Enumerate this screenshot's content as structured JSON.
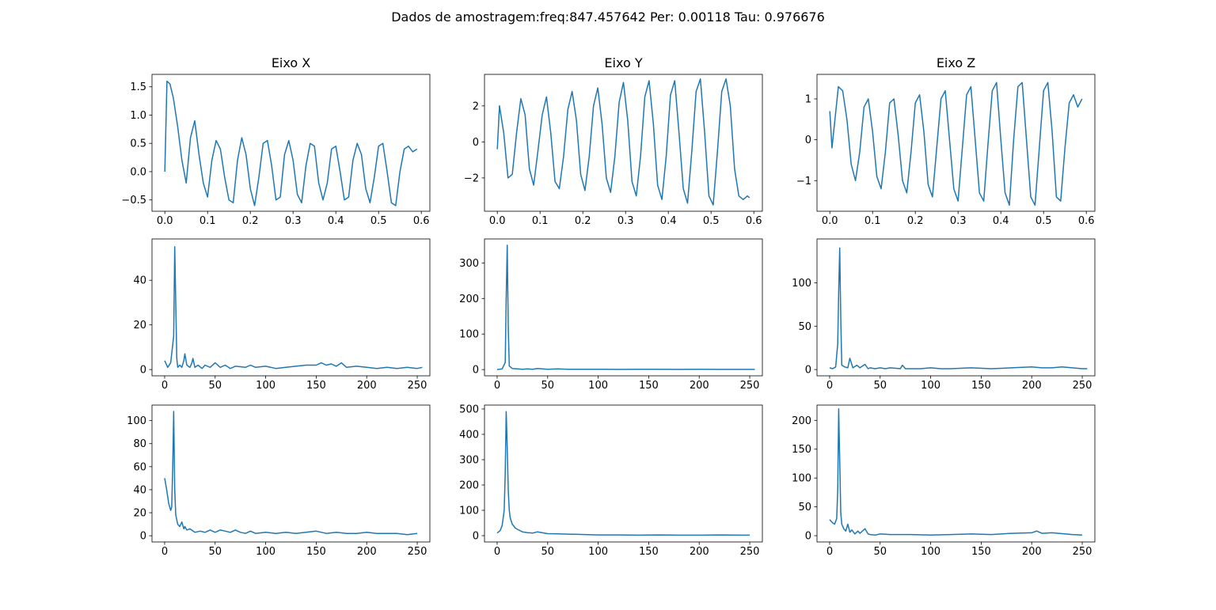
{
  "figure": {
    "suptitle": "Dados de amostragem:freq:847.457642 Per: 0.00118 Tau: 0.976676"
  },
  "chart_data": [
    {
      "type": "line",
      "row": 0,
      "col": 0,
      "title": "Eixo X",
      "xlabel": "",
      "ylabel": "",
      "xlim": [
        -0.03,
        0.62
      ],
      "ylim": [
        -0.7,
        1.72
      ],
      "xticks": [
        0.0,
        0.1,
        0.2,
        0.3,
        0.4,
        0.5,
        0.6
      ],
      "xtick_labels": [
        "0.0",
        "0.1",
        "0.2",
        "0.3",
        "0.4",
        "0.5",
        "0.6"
      ],
      "yticks": [
        -0.5,
        0.0,
        0.5,
        1.0,
        1.5
      ],
      "ytick_labels": [
        "−0.5",
        "0.0",
        "0.5",
        "1.0",
        "1.5"
      ],
      "x": [
        0.0,
        0.005,
        0.012,
        0.02,
        0.03,
        0.04,
        0.05,
        0.06,
        0.07,
        0.08,
        0.09,
        0.1,
        0.11,
        0.12,
        0.13,
        0.14,
        0.15,
        0.16,
        0.17,
        0.18,
        0.19,
        0.2,
        0.21,
        0.22,
        0.23,
        0.24,
        0.25,
        0.26,
        0.27,
        0.28,
        0.29,
        0.3,
        0.31,
        0.32,
        0.33,
        0.34,
        0.35,
        0.36,
        0.37,
        0.38,
        0.39,
        0.4,
        0.41,
        0.42,
        0.43,
        0.44,
        0.45,
        0.46,
        0.47,
        0.48,
        0.49,
        0.5,
        0.51,
        0.52,
        0.53,
        0.54,
        0.55,
        0.56,
        0.57,
        0.58,
        0.59
      ],
      "values": [
        0.0,
        1.6,
        1.55,
        1.3,
        0.8,
        0.2,
        -0.2,
        0.6,
        0.9,
        0.3,
        -0.2,
        -0.45,
        0.2,
        0.55,
        0.4,
        -0.1,
        -0.5,
        -0.55,
        0.2,
        0.6,
        0.3,
        -0.3,
        -0.6,
        -0.1,
        0.5,
        0.55,
        0.1,
        -0.5,
        -0.45,
        0.3,
        0.55,
        0.2,
        -0.4,
        -0.55,
        0.1,
        0.5,
        0.45,
        -0.2,
        -0.5,
        -0.2,
        0.4,
        0.45,
        0.0,
        -0.5,
        -0.45,
        0.2,
        0.5,
        0.3,
        -0.3,
        -0.55,
        -0.1,
        0.45,
        0.5,
        0.0,
        -0.55,
        -0.6,
        0.0,
        0.4,
        0.45,
        0.35,
        0.4
      ],
      "color": "#1f77b4"
    },
    {
      "type": "line",
      "row": 0,
      "col": 1,
      "title": "Eixo Y",
      "xlabel": "",
      "ylabel": "",
      "xlim": [
        -0.03,
        0.62
      ],
      "ylim": [
        -3.85,
        3.75
      ],
      "xticks": [
        0.0,
        0.1,
        0.2,
        0.3,
        0.4,
        0.5,
        0.6
      ],
      "xtick_labels": [
        "0.0",
        "0.1",
        "0.2",
        "0.3",
        "0.4",
        "0.5",
        "0.6"
      ],
      "yticks": [
        -2,
        0,
        2
      ],
      "ytick_labels": [
        "−2",
        "0",
        "2"
      ],
      "x": [
        0.0,
        0.005,
        0.015,
        0.025,
        0.035,
        0.045,
        0.055,
        0.065,
        0.075,
        0.085,
        0.095,
        0.105,
        0.115,
        0.125,
        0.135,
        0.145,
        0.155,
        0.165,
        0.175,
        0.185,
        0.195,
        0.205,
        0.215,
        0.225,
        0.235,
        0.245,
        0.255,
        0.265,
        0.275,
        0.285,
        0.295,
        0.305,
        0.315,
        0.325,
        0.335,
        0.345,
        0.355,
        0.365,
        0.375,
        0.385,
        0.395,
        0.405,
        0.415,
        0.425,
        0.435,
        0.445,
        0.455,
        0.465,
        0.475,
        0.485,
        0.495,
        0.505,
        0.515,
        0.525,
        0.535,
        0.545,
        0.555,
        0.565,
        0.575,
        0.585,
        0.59
      ],
      "values": [
        -0.4,
        2.0,
        0.5,
        -2.0,
        -1.8,
        0.5,
        2.4,
        1.5,
        -1.5,
        -2.4,
        -0.5,
        1.5,
        2.5,
        0.5,
        -2.2,
        -2.6,
        -0.8,
        1.8,
        2.8,
        1.2,
        -1.8,
        -2.7,
        -0.8,
        2.0,
        3.0,
        1.0,
        -2.0,
        -2.8,
        -0.8,
        2.2,
        3.3,
        1.2,
        -2.2,
        -3.0,
        -0.8,
        2.5,
        3.4,
        1.0,
        -2.4,
        -3.2,
        -0.8,
        2.6,
        3.4,
        0.5,
        -2.6,
        -3.4,
        -0.5,
        2.8,
        3.5,
        0.5,
        -3.0,
        -3.5,
        -0.5,
        2.8,
        3.5,
        2.0,
        -1.5,
        -3.0,
        -3.2,
        -3.0,
        -3.1
      ],
      "color": "#1f77b4"
    },
    {
      "type": "line",
      "row": 0,
      "col": 2,
      "title": "Eixo Z",
      "xlabel": "",
      "ylabel": "",
      "xlim": [
        -0.03,
        0.62
      ],
      "ylim": [
        -1.75,
        1.6
      ],
      "xticks": [
        0.0,
        0.1,
        0.2,
        0.3,
        0.4,
        0.5,
        0.6
      ],
      "xtick_labels": [
        "0.0",
        "0.1",
        "0.2",
        "0.3",
        "0.4",
        "0.5",
        "0.6"
      ],
      "yticks": [
        -1,
        0,
        1
      ],
      "ytick_labels": [
        "−1",
        "0",
        "1"
      ],
      "x": [
        0.0,
        0.005,
        0.012,
        0.02,
        0.03,
        0.04,
        0.05,
        0.06,
        0.07,
        0.08,
        0.09,
        0.1,
        0.11,
        0.12,
        0.13,
        0.14,
        0.15,
        0.16,
        0.17,
        0.18,
        0.19,
        0.2,
        0.21,
        0.22,
        0.23,
        0.24,
        0.25,
        0.26,
        0.27,
        0.28,
        0.29,
        0.3,
        0.31,
        0.32,
        0.33,
        0.34,
        0.35,
        0.36,
        0.37,
        0.38,
        0.39,
        0.4,
        0.41,
        0.42,
        0.43,
        0.44,
        0.45,
        0.46,
        0.47,
        0.48,
        0.49,
        0.5,
        0.51,
        0.52,
        0.53,
        0.54,
        0.55,
        0.56,
        0.57,
        0.58,
        0.59
      ],
      "values": [
        0.7,
        -0.2,
        0.5,
        1.3,
        1.2,
        0.5,
        -0.6,
        -1.0,
        -0.3,
        0.8,
        1.0,
        0.2,
        -0.9,
        -1.2,
        -0.3,
        0.9,
        1.0,
        0.1,
        -1.0,
        -1.3,
        -0.3,
        0.9,
        1.1,
        0.2,
        -1.1,
        -1.4,
        -0.2,
        1.0,
        1.2,
        0.0,
        -1.2,
        -1.5,
        -0.2,
        1.1,
        1.3,
        0.0,
        -1.3,
        -1.5,
        -0.1,
        1.2,
        1.4,
        0.0,
        -1.3,
        -1.6,
        0.0,
        1.3,
        1.4,
        0.0,
        -1.4,
        -1.6,
        -0.2,
        1.2,
        1.4,
        0.2,
        -1.4,
        -1.5,
        -0.2,
        0.9,
        1.1,
        0.8,
        1.0
      ],
      "color": "#1f77b4"
    },
    {
      "type": "line",
      "row": 1,
      "col": 0,
      "title": "",
      "xlabel": "",
      "ylabel": "",
      "xlim": [
        -12.5,
        262.5
      ],
      "ylim": [
        -2.8,
        58.5
      ],
      "xticks": [
        0,
        50,
        100,
        150,
        200,
        250
      ],
      "xtick_labels": [
        "0",
        "50",
        "100",
        "150",
        "200",
        "250"
      ],
      "yticks": [
        0,
        20,
        40
      ],
      "ytick_labels": [
        "0",
        "20",
        "40"
      ],
      "x": [
        0,
        3,
        6,
        9,
        10,
        11,
        12,
        13,
        15,
        17,
        19,
        20,
        22,
        25,
        27,
        28,
        30,
        33,
        37,
        40,
        45,
        50,
        55,
        60,
        65,
        70,
        80,
        85,
        90,
        100,
        110,
        120,
        130,
        140,
        150,
        155,
        160,
        165,
        170,
        175,
        180,
        190,
        200,
        210,
        220,
        230,
        240,
        250,
        255
      ],
      "values": [
        4,
        1,
        3,
        15,
        55,
        30,
        5,
        1,
        2,
        1,
        4,
        7,
        2,
        1,
        3,
        5,
        1,
        2,
        0.5,
        2,
        1,
        3,
        1,
        2,
        0.5,
        1.5,
        1,
        2,
        1,
        1.5,
        0.5,
        1,
        1.5,
        2,
        2,
        3,
        2,
        2.5,
        1.5,
        3,
        1,
        1.5,
        1,
        0.5,
        1,
        0.5,
        1,
        0.5,
        1
      ],
      "color": "#1f77b4"
    },
    {
      "type": "line",
      "row": 1,
      "col": 1,
      "title": "",
      "xlabel": "",
      "ylabel": "",
      "xlim": [
        -12.5,
        262.5
      ],
      "ylim": [
        -17.5,
        367.5
      ],
      "xticks": [
        0,
        50,
        100,
        150,
        200,
        250
      ],
      "xtick_labels": [
        "0",
        "50",
        "100",
        "150",
        "200",
        "250"
      ],
      "yticks": [
        0,
        100,
        200,
        300
      ],
      "ytick_labels": [
        "0",
        "100",
        "200",
        "300"
      ],
      "x": [
        0,
        5,
        8,
        9,
        10,
        11,
        12,
        15,
        20,
        25,
        30,
        35,
        40,
        50,
        60,
        70,
        80,
        100,
        120,
        140,
        160,
        180,
        200,
        220,
        240,
        255
      ],
      "values": [
        0,
        2,
        20,
        200,
        350,
        120,
        10,
        3,
        2,
        1,
        2,
        1,
        3,
        1,
        2,
        1,
        1,
        1,
        0.5,
        1,
        1,
        0.5,
        1,
        0.5,
        0.5,
        0.5
      ],
      "color": "#1f77b4"
    },
    {
      "type": "line",
      "row": 1,
      "col": 2,
      "title": "",
      "xlabel": "",
      "ylabel": "",
      "xlim": [
        -12.5,
        262.5
      ],
      "ylim": [
        -7.2,
        150.5
      ],
      "xticks": [
        0,
        50,
        100,
        150,
        200,
        250
      ],
      "xtick_labels": [
        "0",
        "50",
        "100",
        "150",
        "200",
        "250"
      ],
      "yticks": [
        0,
        50,
        100
      ],
      "ytick_labels": [
        "0",
        "50",
        "100"
      ],
      "x": [
        0,
        3,
        6,
        8,
        9,
        10,
        11,
        12,
        15,
        18,
        20,
        23,
        27,
        30,
        35,
        38,
        40,
        45,
        50,
        55,
        60,
        70,
        72,
        75,
        80,
        90,
        100,
        110,
        120,
        140,
        160,
        180,
        200,
        210,
        220,
        230,
        240,
        250,
        255
      ],
      "values": [
        2,
        1,
        3,
        30,
        90,
        140,
        60,
        5,
        3,
        2,
        13,
        2,
        5,
        2,
        6,
        1,
        2,
        1,
        2,
        1,
        2,
        1,
        5,
        1,
        1,
        1,
        2,
        1,
        1,
        2,
        1,
        2,
        3,
        2,
        2,
        3,
        2,
        1,
        1
      ],
      "color": "#1f77b4"
    },
    {
      "type": "line",
      "row": 2,
      "col": 0,
      "title": "",
      "xlabel": "",
      "ylabel": "",
      "xlim": [
        -12.5,
        262.5
      ],
      "ylim": [
        -5.4,
        113.5
      ],
      "xticks": [
        0,
        50,
        100,
        150,
        200,
        250
      ],
      "xtick_labels": [
        "0",
        "50",
        "100",
        "150",
        "200",
        "250"
      ],
      "yticks": [
        0,
        20,
        40,
        60,
        80,
        100
      ],
      "ytick_labels": [
        "0",
        "20",
        "40",
        "60",
        "80",
        "100"
      ],
      "x": [
        0,
        2,
        4,
        6,
        7,
        8,
        9,
        10,
        11,
        13,
        15,
        17,
        19,
        20,
        22,
        25,
        30,
        35,
        40,
        45,
        50,
        55,
        60,
        65,
        70,
        75,
        80,
        85,
        90,
        100,
        110,
        120,
        130,
        140,
        150,
        160,
        170,
        180,
        190,
        200,
        210,
        220,
        230,
        240,
        250
      ],
      "values": [
        50,
        40,
        28,
        22,
        25,
        60,
        108,
        40,
        18,
        10,
        8,
        12,
        6,
        8,
        5,
        6,
        3,
        4,
        3,
        5,
        3,
        5,
        4,
        3,
        5,
        3,
        2,
        4,
        2,
        3,
        2,
        3,
        2,
        3,
        4,
        2,
        3,
        2,
        2,
        3,
        2,
        2,
        2,
        1,
        2
      ],
      "color": "#1f77b4"
    },
    {
      "type": "line",
      "row": 2,
      "col": 1,
      "title": "",
      "xlabel": "",
      "ylabel": "",
      "xlim": [
        -12.5,
        262.5
      ],
      "ylim": [
        -24.9,
        515.5
      ],
      "xticks": [
        0,
        50,
        100,
        150,
        200,
        250
      ],
      "xtick_labels": [
        "0",
        "50",
        "100",
        "150",
        "200",
        "250"
      ],
      "yticks": [
        0,
        100,
        200,
        300,
        400,
        500
      ],
      "ytick_labels": [
        "0",
        "100",
        "200",
        "300",
        "400",
        "500"
      ],
      "x": [
        0,
        3,
        5,
        7,
        8,
        9,
        10,
        11,
        12,
        13,
        15,
        18,
        20,
        25,
        30,
        35,
        40,
        50,
        60,
        70,
        80,
        90,
        100,
        120,
        140,
        160,
        180,
        200,
        220,
        240,
        250
      ],
      "values": [
        10,
        20,
        40,
        100,
        250,
        490,
        350,
        180,
        100,
        70,
        45,
        30,
        25,
        15,
        12,
        10,
        15,
        8,
        7,
        6,
        5,
        4,
        3,
        3,
        2,
        3,
        2,
        2,
        3,
        2,
        2
      ],
      "color": "#1f77b4"
    },
    {
      "type": "line",
      "row": 2,
      "col": 2,
      "title": "",
      "xlabel": "",
      "ylabel": "",
      "xlim": [
        -12.5,
        262.5
      ],
      "ylim": [
        -10.9,
        226.5
      ],
      "xticks": [
        0,
        50,
        100,
        150,
        200,
        250
      ],
      "xtick_labels": [
        "0",
        "50",
        "100",
        "150",
        "200",
        "250"
      ],
      "yticks": [
        0,
        50,
        100,
        150,
        200
      ],
      "ytick_labels": [
        "0",
        "50",
        "100",
        "150",
        "200"
      ],
      "x": [
        0,
        3,
        5,
        7,
        8,
        9,
        10,
        11,
        12,
        14,
        16,
        18,
        20,
        22,
        25,
        28,
        30,
        35,
        38,
        40,
        45,
        50,
        60,
        70,
        80,
        100,
        120,
        140,
        160,
        180,
        200,
        205,
        210,
        220,
        240,
        250
      ],
      "values": [
        28,
        22,
        20,
        30,
        80,
        220,
        130,
        40,
        20,
        12,
        8,
        20,
        6,
        10,
        3,
        8,
        4,
        12,
        3,
        2,
        1,
        3,
        2,
        2,
        2,
        1,
        2,
        3,
        2,
        4,
        5,
        8,
        4,
        5,
        2,
        1
      ],
      "color": "#1f77b4"
    }
  ]
}
